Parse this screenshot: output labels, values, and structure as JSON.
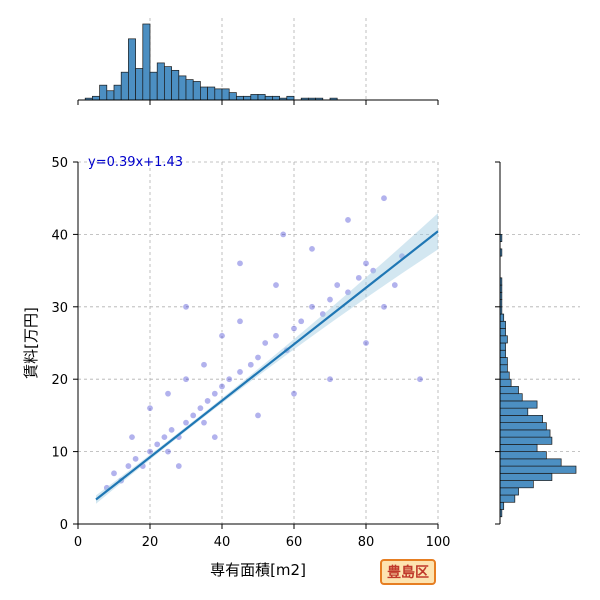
{
  "chart_data": {
    "type": "scatter",
    "title": "",
    "xlabel": "専有面積[m2]",
    "ylabel": "賃料[万円]",
    "xlim": [
      0,
      100
    ],
    "ylim": [
      0,
      50
    ],
    "x_ticks": [
      0,
      20,
      40,
      60,
      80,
      100
    ],
    "y_ticks": [
      0,
      10,
      20,
      30,
      40,
      50
    ],
    "grid": true,
    "regression": {
      "slope": 0.39,
      "intercept": 1.43,
      "x_range": [
        5,
        100
      ],
      "label": "y=0.39x+1.43"
    },
    "points_color": "#2222cc",
    "line_color": "#1f77b4",
    "hist_color": "#4c8fc2",
    "scatter_sample": [
      {
        "x": 8,
        "y": 5
      },
      {
        "x": 10,
        "y": 7
      },
      {
        "x": 12,
        "y": 6
      },
      {
        "x": 14,
        "y": 8
      },
      {
        "x": 16,
        "y": 9
      },
      {
        "x": 18,
        "y": 8
      },
      {
        "x": 20,
        "y": 10
      },
      {
        "x": 22,
        "y": 11
      },
      {
        "x": 24,
        "y": 12
      },
      {
        "x": 25,
        "y": 10
      },
      {
        "x": 26,
        "y": 13
      },
      {
        "x": 28,
        "y": 12
      },
      {
        "x": 30,
        "y": 14
      },
      {
        "x": 32,
        "y": 15
      },
      {
        "x": 34,
        "y": 16
      },
      {
        "x": 35,
        "y": 14
      },
      {
        "x": 36,
        "y": 17
      },
      {
        "x": 38,
        "y": 18
      },
      {
        "x": 40,
        "y": 19
      },
      {
        "x": 42,
        "y": 20
      },
      {
        "x": 45,
        "y": 21
      },
      {
        "x": 48,
        "y": 22
      },
      {
        "x": 50,
        "y": 23
      },
      {
        "x": 52,
        "y": 25
      },
      {
        "x": 55,
        "y": 26
      },
      {
        "x": 58,
        "y": 24
      },
      {
        "x": 60,
        "y": 27
      },
      {
        "x": 62,
        "y": 28
      },
      {
        "x": 65,
        "y": 30
      },
      {
        "x": 68,
        "y": 29
      },
      {
        "x": 70,
        "y": 31
      },
      {
        "x": 72,
        "y": 33
      },
      {
        "x": 75,
        "y": 32
      },
      {
        "x": 78,
        "y": 34
      },
      {
        "x": 80,
        "y": 36
      },
      {
        "x": 82,
        "y": 35
      },
      {
        "x": 85,
        "y": 30
      },
      {
        "x": 88,
        "y": 33
      },
      {
        "x": 90,
        "y": 37
      },
      {
        "x": 95,
        "y": 20
      },
      {
        "x": 20,
        "y": 16
      },
      {
        "x": 30,
        "y": 20
      },
      {
        "x": 40,
        "y": 26
      },
      {
        "x": 25,
        "y": 18
      },
      {
        "x": 35,
        "y": 22
      },
      {
        "x": 45,
        "y": 28
      },
      {
        "x": 55,
        "y": 33
      },
      {
        "x": 65,
        "y": 38
      },
      {
        "x": 75,
        "y": 42
      },
      {
        "x": 85,
        "y": 45
      },
      {
        "x": 15,
        "y": 12
      },
      {
        "x": 28,
        "y": 8
      },
      {
        "x": 38,
        "y": 12
      },
      {
        "x": 50,
        "y": 15
      },
      {
        "x": 60,
        "y": 18
      },
      {
        "x": 70,
        "y": 20
      },
      {
        "x": 80,
        "y": 25
      },
      {
        "x": 30,
        "y": 30
      },
      {
        "x": 45,
        "y": 36
      },
      {
        "x": 57,
        "y": 40
      }
    ],
    "x_histogram": {
      "bin_width": 2,
      "bins_start": 0,
      "counts": [
        0,
        1,
        2,
        8,
        5,
        8,
        15,
        33,
        17,
        41,
        15,
        20,
        18,
        16,
        13,
        11,
        10,
        7,
        7,
        6,
        6,
        4,
        2,
        2,
        3,
        3,
        2,
        2,
        1,
        2,
        0,
        1,
        1,
        1,
        0,
        1,
        0,
        0,
        0,
        0
      ]
    },
    "y_histogram": {
      "bin_width": 1,
      "bins_start": 0,
      "counts": [
        0,
        1,
        2,
        8,
        10,
        18,
        28,
        41,
        33,
        25,
        20,
        28,
        27,
        25,
        23,
        15,
        20,
        12,
        10,
        6,
        5,
        4,
        4,
        3,
        3,
        4,
        3,
        3,
        2,
        1,
        1,
        1,
        1,
        1,
        0,
        0,
        0,
        1,
        0,
        1,
        0,
        0,
        0,
        0,
        0,
        0,
        0,
        0,
        0,
        0
      ]
    }
  },
  "badge_label": "豊島区"
}
